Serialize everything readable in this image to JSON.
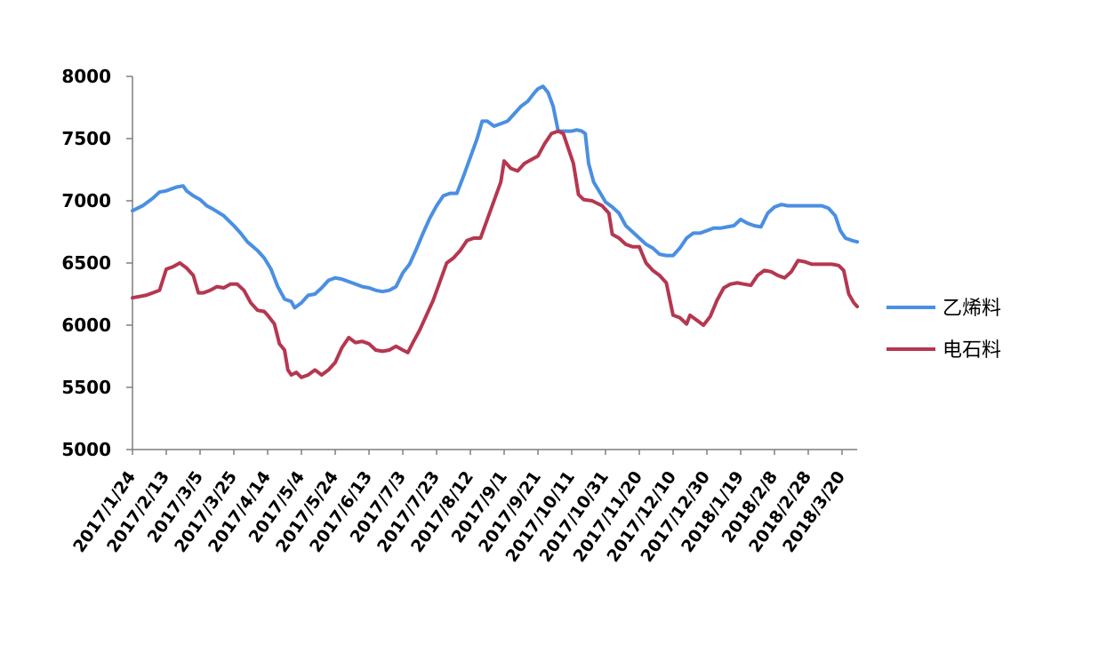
{
  "chart_data": {
    "type": "line",
    "title": "",
    "xlabel": "",
    "ylabel": "",
    "ylim": [
      5000,
      8000
    ],
    "yticks": [
      5000,
      5500,
      6000,
      6500,
      7000,
      7500,
      8000
    ],
    "grid": false,
    "legend_position": "right",
    "categories": [
      "2017/1/24",
      "2017/2/13",
      "2017/3/5",
      "2017/3/25",
      "2017/4/14",
      "2017/5/4",
      "2017/5/24",
      "2017/6/13",
      "2017/7/3",
      "2017/7/23",
      "2017/8/12",
      "2017/9/1",
      "2017/9/21",
      "2017/10/11",
      "2017/10/31",
      "2017/11/20",
      "2017/12/10",
      "2017/12/30",
      "2018/1/19",
      "2018/2/8",
      "2018/2/28",
      "2018/3/20"
    ],
    "x_end_offset": 0.45,
    "series": [
      {
        "name": "乙烯料",
        "color": "#4A8FE2",
        "points": [
          [
            0,
            6920
          ],
          [
            0.3,
            6960
          ],
          [
            0.6,
            7020
          ],
          [
            0.8,
            7070
          ],
          [
            1.0,
            7080
          ],
          [
            1.3,
            7110
          ],
          [
            1.5,
            7120
          ],
          [
            1.6,
            7080
          ],
          [
            1.8,
            7040
          ],
          [
            2.0,
            7010
          ],
          [
            2.2,
            6960
          ],
          [
            2.4,
            6930
          ],
          [
            2.7,
            6880
          ],
          [
            3.0,
            6800
          ],
          [
            3.2,
            6740
          ],
          [
            3.4,
            6670
          ],
          [
            3.7,
            6600
          ],
          [
            3.9,
            6540
          ],
          [
            4.1,
            6450
          ],
          [
            4.3,
            6310
          ],
          [
            4.5,
            6210
          ],
          [
            4.7,
            6190
          ],
          [
            4.8,
            6140
          ],
          [
            5.0,
            6180
          ],
          [
            5.2,
            6240
          ],
          [
            5.4,
            6250
          ],
          [
            5.6,
            6300
          ],
          [
            5.8,
            6360
          ],
          [
            6.0,
            6380
          ],
          [
            6.2,
            6370
          ],
          [
            6.4,
            6350
          ],
          [
            6.6,
            6330
          ],
          [
            6.8,
            6310
          ],
          [
            7.0,
            6300
          ],
          [
            7.2,
            6280
          ],
          [
            7.4,
            6270
          ],
          [
            7.6,
            6280
          ],
          [
            7.8,
            6310
          ],
          [
            8.0,
            6420
          ],
          [
            8.2,
            6490
          ],
          [
            8.4,
            6610
          ],
          [
            8.6,
            6740
          ],
          [
            8.8,
            6860
          ],
          [
            9.0,
            6960
          ],
          [
            9.2,
            7040
          ],
          [
            9.4,
            7060
          ],
          [
            9.6,
            7060
          ],
          [
            9.8,
            7200
          ],
          [
            10.0,
            7350
          ],
          [
            10.2,
            7500
          ],
          [
            10.35,
            7640
          ],
          [
            10.5,
            7640
          ],
          [
            10.7,
            7600
          ],
          [
            10.9,
            7620
          ],
          [
            11.1,
            7640
          ],
          [
            11.3,
            7700
          ],
          [
            11.5,
            7760
          ],
          [
            11.7,
            7800
          ],
          [
            11.9,
            7870
          ],
          [
            12.0,
            7900
          ],
          [
            12.15,
            7920
          ],
          [
            12.3,
            7870
          ],
          [
            12.45,
            7760
          ],
          [
            12.6,
            7560
          ],
          [
            12.8,
            7560
          ],
          [
            13.0,
            7560
          ],
          [
            13.15,
            7570
          ],
          [
            13.3,
            7560
          ],
          [
            13.4,
            7540
          ],
          [
            13.5,
            7300
          ],
          [
            13.65,
            7150
          ],
          [
            13.85,
            7060
          ],
          [
            14.0,
            6990
          ],
          [
            14.2,
            6950
          ],
          [
            14.4,
            6900
          ],
          [
            14.6,
            6800
          ],
          [
            14.8,
            6750
          ],
          [
            15.0,
            6700
          ],
          [
            15.2,
            6650
          ],
          [
            15.4,
            6620
          ],
          [
            15.6,
            6570
          ],
          [
            15.8,
            6560
          ],
          [
            16.0,
            6560
          ],
          [
            16.2,
            6620
          ],
          [
            16.4,
            6700
          ],
          [
            16.6,
            6740
          ],
          [
            16.8,
            6740
          ],
          [
            17.0,
            6760
          ],
          [
            17.2,
            6780
          ],
          [
            17.4,
            6780
          ],
          [
            17.6,
            6790
          ],
          [
            17.8,
            6800
          ],
          [
            18.0,
            6850
          ],
          [
            18.2,
            6820
          ],
          [
            18.4,
            6800
          ],
          [
            18.6,
            6790
          ],
          [
            18.8,
            6900
          ],
          [
            19.0,
            6950
          ],
          [
            19.2,
            6970
          ],
          [
            19.4,
            6960
          ],
          [
            19.6,
            6960
          ],
          [
            19.8,
            6960
          ],
          [
            20.0,
            6960
          ],
          [
            20.2,
            6960
          ],
          [
            20.4,
            6960
          ],
          [
            20.6,
            6940
          ],
          [
            20.8,
            6880
          ],
          [
            20.95,
            6760
          ],
          [
            21.1,
            6700
          ],
          [
            21.3,
            6680
          ],
          [
            21.45,
            6670
          ]
        ]
      },
      {
        "name": "电石料",
        "color": "#B5374F",
        "points": [
          [
            0,
            6220
          ],
          [
            0.4,
            6240
          ],
          [
            0.6,
            6260
          ],
          [
            0.8,
            6280
          ],
          [
            1.0,
            6450
          ],
          [
            1.2,
            6470
          ],
          [
            1.4,
            6500
          ],
          [
            1.6,
            6460
          ],
          [
            1.8,
            6400
          ],
          [
            1.95,
            6260
          ],
          [
            2.1,
            6260
          ],
          [
            2.3,
            6280
          ],
          [
            2.5,
            6310
          ],
          [
            2.7,
            6300
          ],
          [
            2.9,
            6330
          ],
          [
            3.1,
            6330
          ],
          [
            3.3,
            6280
          ],
          [
            3.5,
            6180
          ],
          [
            3.7,
            6120
          ],
          [
            3.9,
            6110
          ],
          [
            4.0,
            6080
          ],
          [
            4.2,
            6010
          ],
          [
            4.35,
            5850
          ],
          [
            4.5,
            5800
          ],
          [
            4.6,
            5640
          ],
          [
            4.7,
            5600
          ],
          [
            4.85,
            5620
          ],
          [
            5.0,
            5580
          ],
          [
            5.2,
            5600
          ],
          [
            5.4,
            5640
          ],
          [
            5.6,
            5600
          ],
          [
            5.8,
            5640
          ],
          [
            6.0,
            5700
          ],
          [
            6.2,
            5820
          ],
          [
            6.4,
            5900
          ],
          [
            6.6,
            5860
          ],
          [
            6.8,
            5870
          ],
          [
            7.0,
            5850
          ],
          [
            7.2,
            5800
          ],
          [
            7.4,
            5790
          ],
          [
            7.6,
            5800
          ],
          [
            7.8,
            5830
          ],
          [
            8.0,
            5800
          ],
          [
            8.15,
            5780
          ],
          [
            8.3,
            5860
          ],
          [
            8.5,
            5960
          ],
          [
            8.7,
            6080
          ],
          [
            8.9,
            6200
          ],
          [
            9.1,
            6350
          ],
          [
            9.3,
            6500
          ],
          [
            9.5,
            6540
          ],
          [
            9.7,
            6600
          ],
          [
            9.9,
            6680
          ],
          [
            10.1,
            6700
          ],
          [
            10.3,
            6700
          ],
          [
            10.5,
            6850
          ],
          [
            10.7,
            7000
          ],
          [
            10.9,
            7150
          ],
          [
            11.0,
            7320
          ],
          [
            11.2,
            7260
          ],
          [
            11.4,
            7240
          ],
          [
            11.6,
            7300
          ],
          [
            11.8,
            7330
          ],
          [
            12.0,
            7360
          ],
          [
            12.2,
            7460
          ],
          [
            12.4,
            7540
          ],
          [
            12.6,
            7560
          ],
          [
            12.75,
            7540
          ],
          [
            12.9,
            7420
          ],
          [
            13.05,
            7300
          ],
          [
            13.2,
            7050
          ],
          [
            13.35,
            7010
          ],
          [
            13.6,
            7000
          ],
          [
            13.9,
            6960
          ],
          [
            14.1,
            6900
          ],
          [
            14.2,
            6730
          ],
          [
            14.4,
            6700
          ],
          [
            14.6,
            6650
          ],
          [
            14.8,
            6630
          ],
          [
            15.0,
            6630
          ],
          [
            15.2,
            6500
          ],
          [
            15.4,
            6440
          ],
          [
            15.6,
            6400
          ],
          [
            15.8,
            6340
          ],
          [
            16.0,
            6080
          ],
          [
            16.2,
            6060
          ],
          [
            16.4,
            6010
          ],
          [
            16.5,
            6080
          ],
          [
            16.7,
            6040
          ],
          [
            16.9,
            6000
          ],
          [
            17.1,
            6070
          ],
          [
            17.3,
            6200
          ],
          [
            17.5,
            6300
          ],
          [
            17.7,
            6330
          ],
          [
            17.9,
            6340
          ],
          [
            18.1,
            6330
          ],
          [
            18.3,
            6320
          ],
          [
            18.5,
            6400
          ],
          [
            18.7,
            6440
          ],
          [
            18.9,
            6430
          ],
          [
            19.1,
            6400
          ],
          [
            19.3,
            6380
          ],
          [
            19.5,
            6430
          ],
          [
            19.7,
            6520
          ],
          [
            19.9,
            6510
          ],
          [
            20.1,
            6490
          ],
          [
            20.3,
            6490
          ],
          [
            20.5,
            6490
          ],
          [
            20.7,
            6490
          ],
          [
            20.9,
            6480
          ],
          [
            21.05,
            6440
          ],
          [
            21.2,
            6250
          ],
          [
            21.35,
            6180
          ],
          [
            21.45,
            6150
          ]
        ]
      }
    ]
  }
}
